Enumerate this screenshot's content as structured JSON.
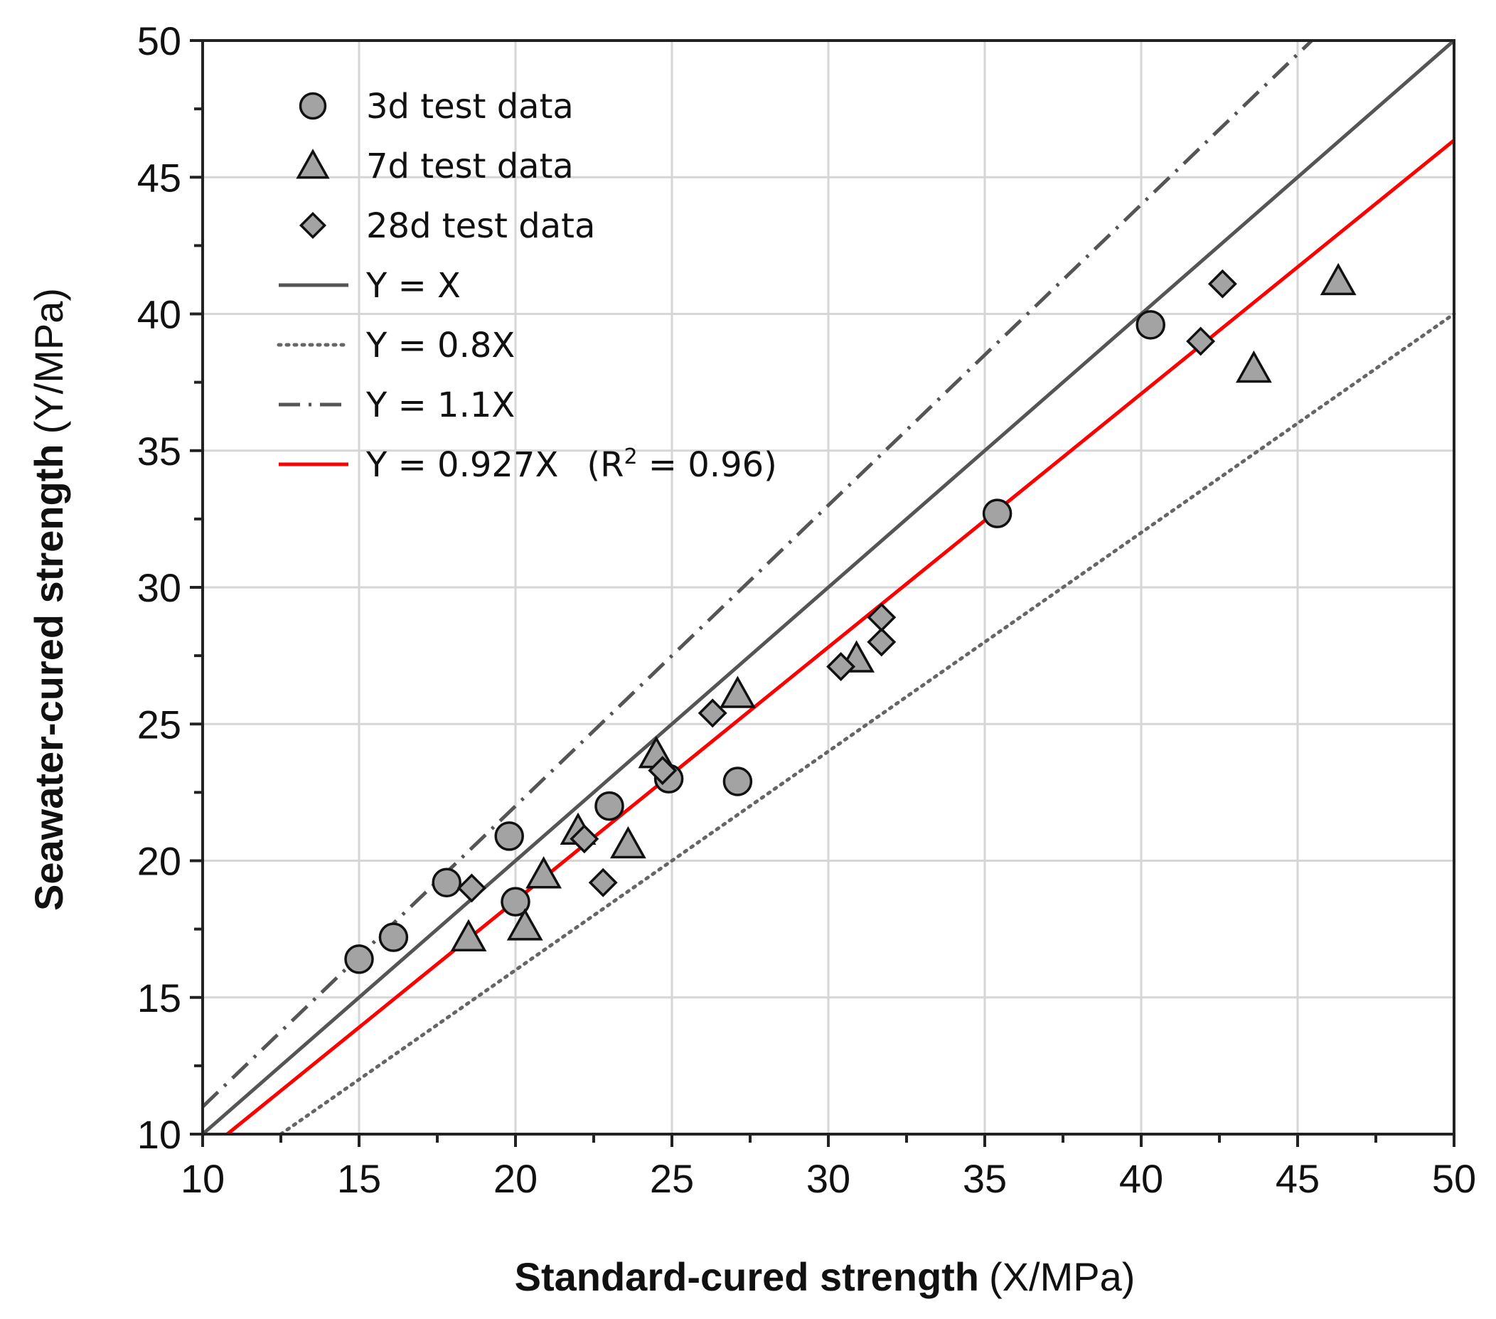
{
  "chart_data": {
    "type": "scatter",
    "title": "",
    "xlabel_bold": "Standard-cured strength",
    "xlabel_unit": "(X/MPa)",
    "ylabel_bold": "Seawater-cured strength",
    "ylabel_unit": "(Y/MPa)",
    "xlim": [
      10,
      50
    ],
    "ylim": [
      10,
      50
    ],
    "xticks": [
      10,
      15,
      20,
      25,
      30,
      35,
      40,
      45,
      50
    ],
    "yticks": [
      10,
      15,
      20,
      25,
      30,
      35,
      40,
      45,
      50
    ],
    "minor_step": 2.5,
    "grid": true,
    "legend_position": "top-left",
    "series": [
      {
        "name": "3d test data",
        "marker": "circle",
        "color": "#a0a0a0",
        "points": [
          [
            15.0,
            16.4
          ],
          [
            16.1,
            17.2
          ],
          [
            17.8,
            19.2
          ],
          [
            19.8,
            20.9
          ],
          [
            20.0,
            18.5
          ],
          [
            23.0,
            22.0
          ],
          [
            24.9,
            23.0
          ],
          [
            27.1,
            22.9
          ],
          [
            35.4,
            32.7
          ],
          [
            40.3,
            39.6
          ]
        ]
      },
      {
        "name": "7d test data",
        "marker": "triangle",
        "color": "#a0a0a0",
        "points": [
          [
            18.5,
            17.2
          ],
          [
            20.3,
            17.6
          ],
          [
            20.9,
            19.5
          ],
          [
            22.0,
            21.1
          ],
          [
            23.6,
            20.6
          ],
          [
            24.5,
            23.9
          ],
          [
            27.1,
            26.1
          ],
          [
            30.9,
            27.4
          ],
          [
            43.6,
            38.0
          ],
          [
            46.3,
            41.2
          ]
        ]
      },
      {
        "name": "28d test data",
        "marker": "diamond",
        "color": "#a0a0a0",
        "points": [
          [
            18.6,
            19.0
          ],
          [
            22.2,
            20.8
          ],
          [
            22.8,
            19.2
          ],
          [
            24.7,
            23.3
          ],
          [
            26.3,
            25.4
          ],
          [
            30.4,
            27.1
          ],
          [
            31.7,
            28.0
          ],
          [
            31.7,
            28.9
          ],
          [
            41.9,
            39.0
          ],
          [
            42.6,
            41.1
          ]
        ]
      }
    ],
    "lines": [
      {
        "name": "Y = X",
        "slope": 1.0,
        "style": "solid",
        "color": "#555555"
      },
      {
        "name": "Y = 0.8X",
        "slope": 0.8,
        "style": "dotted",
        "color": "#666666"
      },
      {
        "name": "Y = 1.1X",
        "slope": 1.1,
        "style": "dashdot",
        "color": "#555555"
      },
      {
        "name": "Y = 0.927X",
        "slope": 0.927,
        "style": "solid",
        "color": "#ff0000",
        "r2_prefix": "(R",
        "r2_sup": "2",
        "r2_suffix": " = 0.96)"
      }
    ]
  }
}
